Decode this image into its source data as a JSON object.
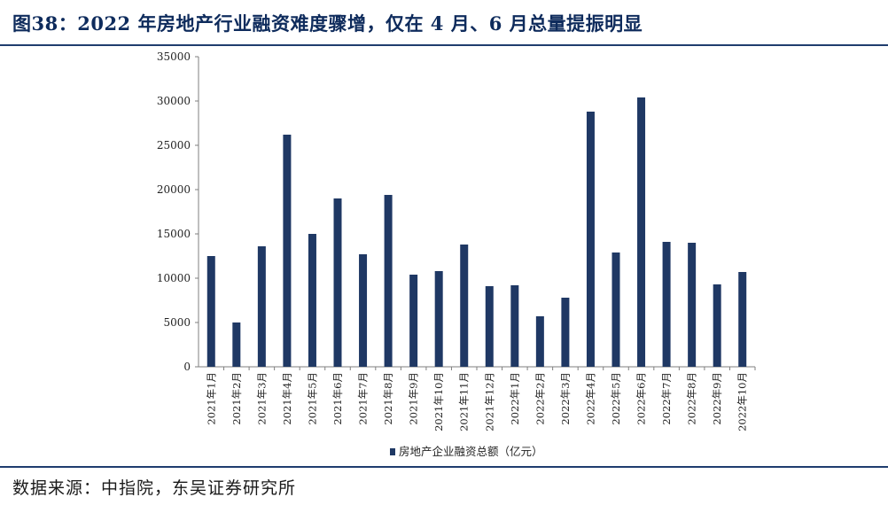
{
  "title": "图38：2022 年房地产行业融资难度骤增，仅在 4 月、6 月总量提振明显",
  "source": "数据来源：中指院，东吴证券研究所",
  "colors": {
    "bar": "#1f3864",
    "rule": "#1f3d6e",
    "title": "#0e2b5c"
  },
  "chart_data": {
    "type": "bar",
    "categories": [
      "2021年1月",
      "2021年2月",
      "2021年3月",
      "2021年4月",
      "2021年5月",
      "2021年6月",
      "2021年7月",
      "2021年8月",
      "2021年9月",
      "2021年10月",
      "2021年11月",
      "2021年12月",
      "2022年1月",
      "2022年2月",
      "2022年3月",
      "2022年4月",
      "2022年5月",
      "2022年6月",
      "2022年7月",
      "2022年8月",
      "2022年9月",
      "2022年10月"
    ],
    "series": [
      {
        "name": "房地产企业融资总额（亿元）",
        "values": [
          12500,
          5000,
          13600,
          26200,
          15000,
          19000,
          12700,
          19400,
          10400,
          10800,
          13800,
          9100,
          9200,
          5700,
          7800,
          28800,
          12900,
          30400,
          14100,
          14000,
          9300,
          10700
        ]
      }
    ],
    "ylim": [
      0,
      35000
    ],
    "yticks": [
      "0",
      "5000",
      "10000",
      "15000",
      "20000",
      "25000",
      "30000",
      "35000"
    ],
    "legend_position": "bottom-center",
    "grid": false
  }
}
